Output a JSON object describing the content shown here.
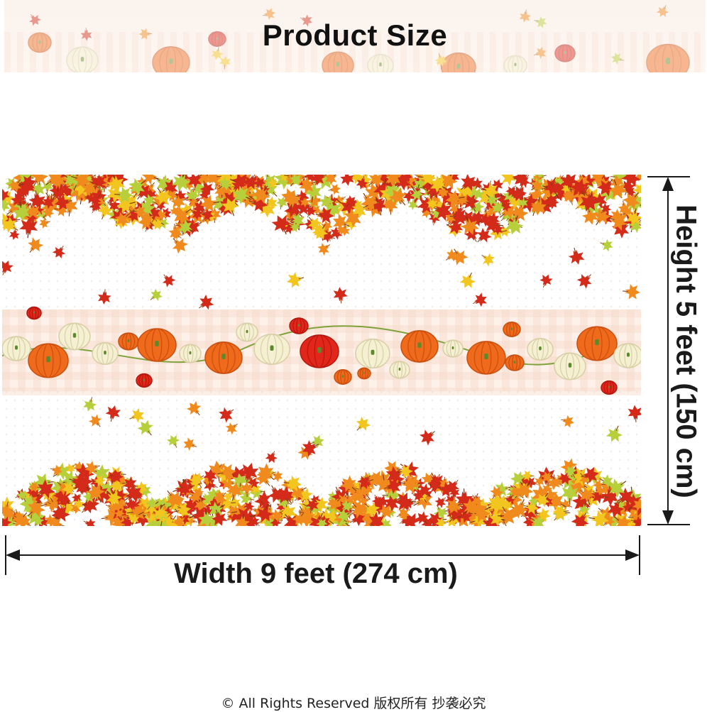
{
  "banner": {
    "title": "Product Size"
  },
  "product": {
    "image_name": "fall-pumpkin-tablecloth",
    "colors": {
      "pumpkin_orange": "#f06a1c",
      "pumpkin_red": "#e3261b",
      "pumpkin_cream": "#f5f0d2",
      "leaf_red": "#d42a1a",
      "leaf_orange": "#f08a1c",
      "leaf_yellow": "#f2c61e",
      "leaf_green": "#b6cf3a",
      "gingham": "#f6d9c8"
    }
  },
  "dimensions": {
    "width_label": "Width 9 feet (274 cm)",
    "height_label": "Height 5 feet (150 cm)"
  },
  "footer": {
    "copyright": "© All Rights Reserved 版权所有 抄袭必究"
  }
}
